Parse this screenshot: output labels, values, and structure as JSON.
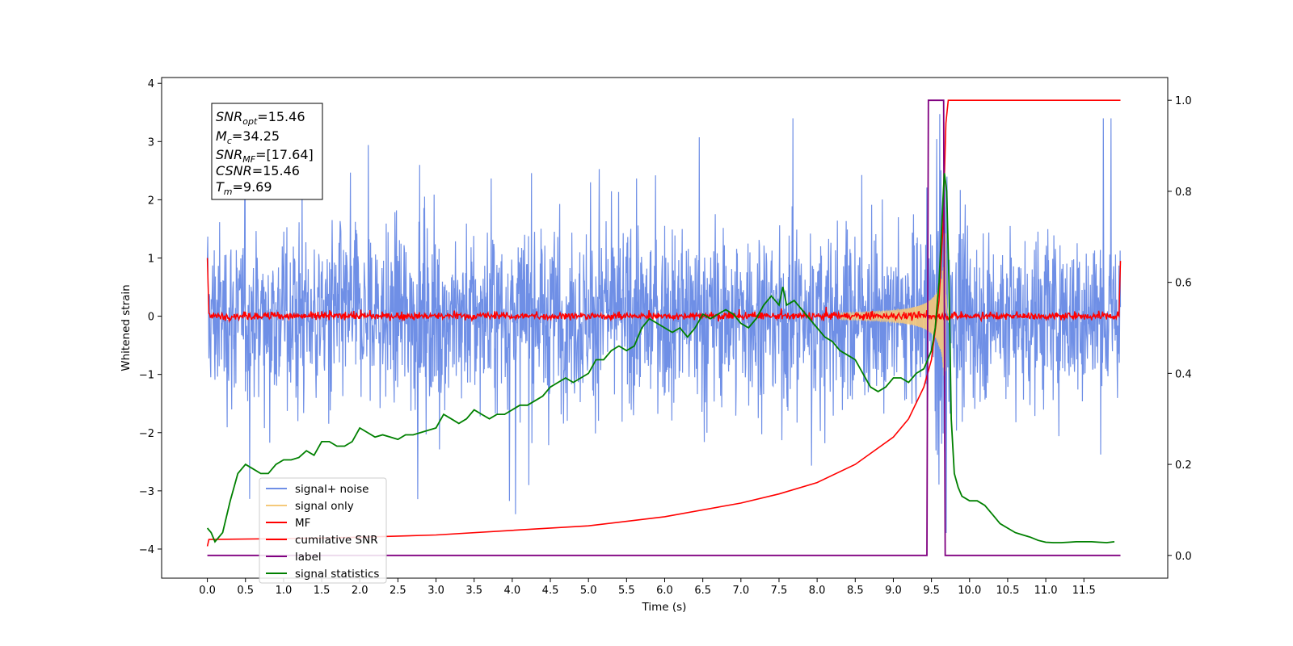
{
  "colors": {
    "signal_noise": "#6f8fe6",
    "signal_only": "#f5c97a",
    "mf": "#ff0000",
    "cumulative_snr": "#ff0000",
    "label": "#800080",
    "signal_statistics": "#008000"
  },
  "annotation": {
    "snr_opt": {
      "label": "SNR",
      "sub": "opt",
      "value": "=15.46"
    },
    "mc": {
      "label": "M",
      "sub": "c",
      "value": "=34.25"
    },
    "snr_mf": {
      "label": "SNR",
      "sub": "MF",
      "value": "=[17.64]"
    },
    "csnr": {
      "label": "CSNR",
      "sub": "",
      "value": "=15.46"
    },
    "tm": {
      "label": "T",
      "sub": "m",
      "value": "=9.69"
    }
  },
  "chart_data": {
    "type": "line",
    "xlabel": "Time (s)",
    "ylabel": "Whitened strain",
    "y2label": "",
    "xlim": [
      -0.6,
      12.6
    ],
    "ylim": [
      -4.5,
      4.1
    ],
    "y2lim": [
      -0.05,
      1.05
    ],
    "xticks": [
      0.0,
      0.5,
      1.0,
      1.5,
      2.0,
      2.5,
      3.0,
      3.5,
      4.0,
      4.5,
      5.0,
      5.5,
      6.0,
      6.5,
      7.0,
      7.5,
      8.0,
      8.5,
      9.0,
      9.5,
      10.0,
      10.5,
      11.0,
      11.5
    ],
    "xtick_labels": [
      "0.0",
      "0.5",
      "1.0",
      "1.5",
      "2.0",
      "2.5",
      "3.0",
      "3.5",
      "4.0",
      "4.5",
      "5.0",
      "5.5",
      "6.0",
      "6.5",
      "7.0",
      "7.5",
      "8.0",
      "8.5",
      "9.0",
      "9.5",
      "10.0",
      "10.5",
      "11.0",
      "11.5"
    ],
    "yticks": [
      4,
      3,
      2,
      1,
      0,
      -1,
      -2,
      -3,
      -4
    ],
    "ytick_labels": [
      "4",
      "3",
      "2",
      "1",
      "0",
      "−1",
      "−2",
      "−3",
      "−4"
    ],
    "y2ticks": [
      1.0,
      0.8,
      0.6,
      0.4,
      0.2,
      0.0
    ],
    "y2tick_labels": [
      "1.0",
      "0.8",
      "0.6",
      "0.4",
      "0.2",
      "0.0"
    ],
    "grid": false,
    "legend_placement": "lower-left",
    "legend": [
      "signal+ noise",
      "signal only",
      "MF",
      "cumilative SNR",
      "label",
      "signal statistics"
    ],
    "series": [
      {
        "name": "signal+ noise",
        "axis": "left",
        "note_envelope": "noise band approx -2.2 to 2.4, peaks to +-3.3",
        "t_range": [
          0.0,
          11.98
        ],
        "typical_amplitude": 1.6,
        "peak_amplitude": 3.4
      },
      {
        "name": "signal only",
        "axis": "left",
        "t_range": [
          8.3,
          9.75
        ],
        "peak_amplitude": 1.8,
        "merger_time": 9.69
      },
      {
        "name": "MF",
        "axis": "left",
        "points": [
          [
            0.0,
            1.0
          ],
          [
            0.02,
            0.05
          ],
          [
            11.96,
            0.0
          ],
          [
            11.98,
            0.95
          ]
        ],
        "noise_amplitude": 0.06
      },
      {
        "name": "cumilative SNR",
        "axis": "right",
        "points": [
          [
            0.0,
            0.02
          ],
          [
            0.02,
            0.035
          ],
          [
            1.0,
            0.037
          ],
          [
            2.0,
            0.04
          ],
          [
            3.0,
            0.045
          ],
          [
            4.0,
            0.055
          ],
          [
            5.0,
            0.065
          ],
          [
            6.0,
            0.085
          ],
          [
            7.0,
            0.115
          ],
          [
            7.5,
            0.135
          ],
          [
            8.0,
            0.16
          ],
          [
            8.5,
            0.2
          ],
          [
            9.0,
            0.26
          ],
          [
            9.2,
            0.3
          ],
          [
            9.4,
            0.37
          ],
          [
            9.5,
            0.43
          ],
          [
            9.6,
            0.56
          ],
          [
            9.65,
            0.72
          ],
          [
            9.69,
            0.95
          ],
          [
            9.72,
            1.0
          ],
          [
            11.98,
            1.0
          ]
        ]
      },
      {
        "name": "label",
        "axis": "right",
        "points": [
          [
            0.0,
            0.0
          ],
          [
            9.44,
            0.0
          ],
          [
            9.46,
            1.0
          ],
          [
            9.66,
            1.0
          ],
          [
            9.68,
            0.0
          ],
          [
            11.98,
            0.0
          ]
        ]
      },
      {
        "name": "signal statistics",
        "axis": "right",
        "points": [
          [
            0.0,
            0.06
          ],
          [
            0.05,
            0.05
          ],
          [
            0.1,
            0.03
          ],
          [
            0.2,
            0.05
          ],
          [
            0.3,
            0.12
          ],
          [
            0.4,
            0.18
          ],
          [
            0.5,
            0.2
          ],
          [
            0.6,
            0.19
          ],
          [
            0.7,
            0.18
          ],
          [
            0.8,
            0.18
          ],
          [
            0.9,
            0.2
          ],
          [
            1.0,
            0.21
          ],
          [
            1.1,
            0.21
          ],
          [
            1.2,
            0.215
          ],
          [
            1.3,
            0.23
          ],
          [
            1.4,
            0.22
          ],
          [
            1.5,
            0.25
          ],
          [
            1.6,
            0.25
          ],
          [
            1.7,
            0.24
          ],
          [
            1.8,
            0.24
          ],
          [
            1.9,
            0.25
          ],
          [
            2.0,
            0.28
          ],
          [
            2.1,
            0.27
          ],
          [
            2.2,
            0.26
          ],
          [
            2.3,
            0.265
          ],
          [
            2.4,
            0.26
          ],
          [
            2.5,
            0.255
          ],
          [
            2.6,
            0.265
          ],
          [
            2.7,
            0.265
          ],
          [
            2.8,
            0.27
          ],
          [
            3.0,
            0.28
          ],
          [
            3.1,
            0.31
          ],
          [
            3.2,
            0.3
          ],
          [
            3.3,
            0.29
          ],
          [
            3.4,
            0.3
          ],
          [
            3.5,
            0.32
          ],
          [
            3.6,
            0.31
          ],
          [
            3.7,
            0.3
          ],
          [
            3.8,
            0.31
          ],
          [
            3.9,
            0.31
          ],
          [
            4.0,
            0.32
          ],
          [
            4.1,
            0.33
          ],
          [
            4.2,
            0.33
          ],
          [
            4.3,
            0.34
          ],
          [
            4.4,
            0.35
          ],
          [
            4.5,
            0.37
          ],
          [
            4.6,
            0.38
          ],
          [
            4.7,
            0.39
          ],
          [
            4.8,
            0.38
          ],
          [
            4.9,
            0.39
          ],
          [
            5.0,
            0.4
          ],
          [
            5.1,
            0.43
          ],
          [
            5.2,
            0.43
          ],
          [
            5.3,
            0.45
          ],
          [
            5.4,
            0.46
          ],
          [
            5.5,
            0.45
          ],
          [
            5.6,
            0.46
          ],
          [
            5.7,
            0.5
          ],
          [
            5.8,
            0.52
          ],
          [
            5.9,
            0.51
          ],
          [
            6.0,
            0.5
          ],
          [
            6.1,
            0.49
          ],
          [
            6.2,
            0.5
          ],
          [
            6.3,
            0.48
          ],
          [
            6.4,
            0.5
          ],
          [
            6.5,
            0.53
          ],
          [
            6.6,
            0.52
          ],
          [
            6.7,
            0.53
          ],
          [
            6.8,
            0.54
          ],
          [
            6.9,
            0.53
          ],
          [
            7.0,
            0.51
          ],
          [
            7.1,
            0.5
          ],
          [
            7.2,
            0.52
          ],
          [
            7.3,
            0.55
          ],
          [
            7.4,
            0.57
          ],
          [
            7.5,
            0.55
          ],
          [
            7.55,
            0.59
          ],
          [
            7.6,
            0.55
          ],
          [
            7.7,
            0.56
          ],
          [
            7.8,
            0.54
          ],
          [
            7.9,
            0.52
          ],
          [
            8.0,
            0.5
          ],
          [
            8.1,
            0.48
          ],
          [
            8.2,
            0.47
          ],
          [
            8.3,
            0.45
          ],
          [
            8.4,
            0.44
          ],
          [
            8.5,
            0.43
          ],
          [
            8.6,
            0.4
          ],
          [
            8.7,
            0.37
          ],
          [
            8.8,
            0.36
          ],
          [
            8.9,
            0.37
          ],
          [
            9.0,
            0.39
          ],
          [
            9.1,
            0.39
          ],
          [
            9.2,
            0.38
          ],
          [
            9.3,
            0.4
          ],
          [
            9.4,
            0.41
          ],
          [
            9.5,
            0.45
          ],
          [
            9.55,
            0.5
          ],
          [
            9.6,
            0.6
          ],
          [
            9.65,
            0.78
          ],
          [
            9.67,
            0.84
          ],
          [
            9.7,
            0.8
          ],
          [
            9.73,
            0.6
          ],
          [
            9.76,
            0.3
          ],
          [
            9.8,
            0.18
          ],
          [
            9.85,
            0.15
          ],
          [
            9.9,
            0.13
          ],
          [
            10.0,
            0.12
          ],
          [
            10.1,
            0.12
          ],
          [
            10.2,
            0.11
          ],
          [
            10.3,
            0.09
          ],
          [
            10.4,
            0.07
          ],
          [
            10.5,
            0.06
          ],
          [
            10.6,
            0.05
          ],
          [
            10.7,
            0.045
          ],
          [
            10.8,
            0.04
          ],
          [
            10.9,
            0.033
          ],
          [
            11.0,
            0.029
          ],
          [
            11.1,
            0.028
          ],
          [
            11.2,
            0.028
          ],
          [
            11.3,
            0.029
          ],
          [
            11.4,
            0.03
          ],
          [
            11.5,
            0.03
          ],
          [
            11.6,
            0.03
          ],
          [
            11.7,
            0.029
          ],
          [
            11.8,
            0.028
          ],
          [
            11.9,
            0.03
          ]
        ]
      }
    ]
  }
}
